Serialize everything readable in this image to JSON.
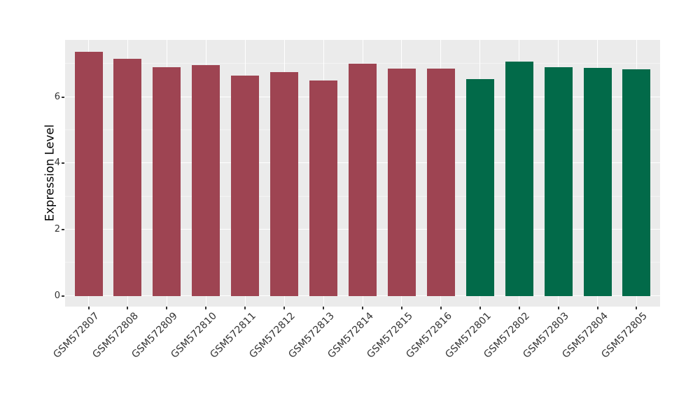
{
  "chart_data": {
    "type": "bar",
    "title": "",
    "xlabel": "",
    "ylabel": "Expression Level",
    "categories": [
      "GSM572807",
      "GSM572808",
      "GSM572809",
      "GSM572810",
      "GSM572811",
      "GSM572812",
      "GSM572813",
      "GSM572814",
      "GSM572815",
      "GSM572816",
      "GSM572801",
      "GSM572802",
      "GSM572803",
      "GSM572804",
      "GSM572805"
    ],
    "values": [
      7.36,
      7.15,
      6.9,
      6.96,
      6.65,
      6.75,
      6.5,
      7.0,
      6.86,
      6.85,
      6.53,
      7.07,
      6.9,
      6.87,
      6.83
    ],
    "bar_groups": [
      "A",
      "A",
      "A",
      "A",
      "A",
      "A",
      "A",
      "A",
      "A",
      "A",
      "B",
      "B",
      "B",
      "B",
      "B"
    ],
    "group_colors": {
      "A": "#9E4452",
      "B": "#026A49"
    },
    "y_ticks": [
      0,
      2,
      4,
      6
    ],
    "y_minor_ticks": [
      1,
      3,
      5,
      7
    ],
    "ylim": [
      -0.32,
      7.72
    ],
    "x_tick_angle": 45,
    "legend": "none",
    "grid": true,
    "colors": {
      "figure_background": "#FFFFFF",
      "panel_background": "#EBEBEB",
      "grid_major": "#FFFFFF",
      "grid_minor": "#F4F4F4",
      "tick_mark": "#333333",
      "tick_text": "#333333",
      "axis_title": "#000000"
    }
  }
}
